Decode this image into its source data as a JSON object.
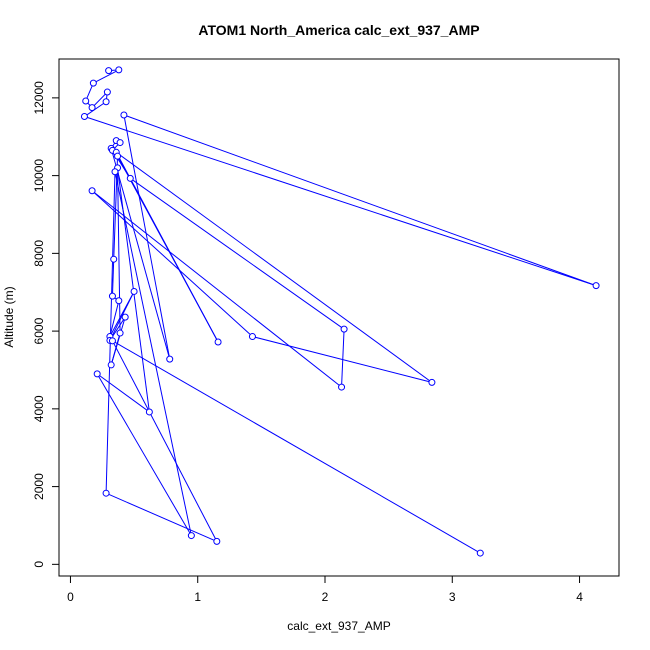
{
  "chart_data": {
    "type": "scatter",
    "title": "ATOM1 North_America calc_ext_937_AMP",
    "xlabel": "calc_ext_937_AMP",
    "ylabel": "Altitude (m)",
    "xlim": [
      -0.09,
      4.31
    ],
    "ylim": [
      -300,
      13000
    ],
    "xticks": [
      0,
      1,
      2,
      3,
      4
    ],
    "yticks": [
      0,
      2000,
      4000,
      6000,
      8000,
      10000,
      12000
    ],
    "grid": false,
    "series_color": "#0000ff",
    "series": [
      {
        "mode": "lines+markers",
        "points": [
          [
            0.3,
            12700
          ],
          [
            0.38,
            12720
          ],
          [
            0.18,
            12380
          ],
          [
            0.12,
            11920
          ],
          [
            0.17,
            11750
          ],
          [
            0.29,
            12150
          ],
          [
            0.28,
            11900
          ],
          [
            0.11,
            11520
          ],
          [
            4.13,
            7170
          ],
          [
            0.42,
            11560
          ],
          [
            0.78,
            5280
          ],
          [
            0.32,
            10700
          ],
          [
            0.36,
            10900
          ],
          [
            0.39,
            10850
          ],
          [
            0.33,
            10650
          ],
          [
            0.47,
            9930
          ],
          [
            2.15,
            6050
          ],
          [
            2.13,
            4560
          ],
          [
            0.17,
            9610
          ],
          [
            1.43,
            5860
          ],
          [
            2.84,
            4680
          ],
          [
            0.36,
            10600
          ],
          [
            1.16,
            5720
          ],
          [
            0.37,
            10500
          ],
          [
            0.34,
            7850
          ],
          [
            0.33,
            6900
          ],
          [
            0.38,
            6780
          ],
          [
            0.31,
            5860
          ],
          [
            0.5,
            7020
          ],
          [
            0.31,
            5760
          ],
          [
            0.43,
            6360
          ],
          [
            0.32,
            5130
          ],
          [
            0.39,
            5950
          ],
          [
            0.37,
            10200
          ],
          [
            0.62,
            3920
          ],
          [
            0.21,
            4900
          ],
          [
            0.95,
            740
          ],
          [
            0.35,
            10100
          ],
          [
            0.28,
            1830
          ],
          [
            1.15,
            590
          ],
          [
            0.33,
            5750
          ],
          [
            3.22,
            290
          ]
        ]
      }
    ]
  }
}
